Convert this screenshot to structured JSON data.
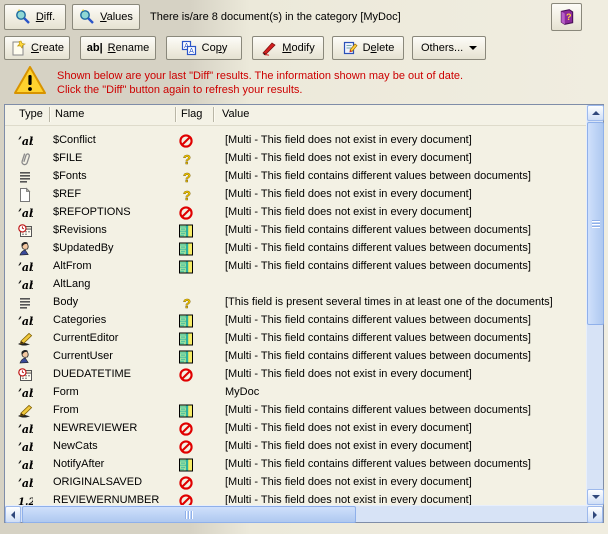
{
  "toolbar": {
    "diff": {
      "pre": "",
      "u": "D",
      "post": "iff."
    },
    "values": {
      "pre": "",
      "u": "V",
      "post": "alues"
    },
    "status": "There is/are 8 document(s) in the category [MyDoc]",
    "create": {
      "pre": "",
      "u": "C",
      "post": "reate"
    },
    "rename": {
      "pre": "",
      "u": "R",
      "post": "ename"
    },
    "copy": {
      "pre": "Co",
      "u": "p",
      "post": "y"
    },
    "modify": {
      "pre": "",
      "u": "M",
      "post": "odify"
    },
    "delete": {
      "pre": "D",
      "u": "e",
      "post": "lete"
    },
    "others": "Others..."
  },
  "warning": {
    "line1": "Shown below are your last \"Diff\" results. The information shown may be out of date.",
    "line2": "Click the \"Diff\" button again to refresh your results."
  },
  "glyphs": {
    "text_field": "ʼab",
    "number_field": "1.2",
    "rename": "ab|",
    "copy_letter": "A",
    "question": "?",
    "exclamation": "!",
    "help_mark": "?"
  },
  "colors": {
    "warning_text": "#cc0000",
    "flag_missing": "#e00000",
    "flag_question": "#ffd400",
    "flag_diff_green": "#9fe4a0",
    "flag_diff_teal": "#2ab0a0",
    "flag_diff_yellow": "#f6ec66",
    "scrollbar_thumb": "#aec8f0"
  },
  "table": {
    "headers": [
      "Type",
      "Name",
      "Flag",
      "Value"
    ],
    "rows": [
      {
        "icon": "text-field",
        "name": "$Conflict",
        "flag": "missing",
        "value": "[Multi - This field does not exist in every document]"
      },
      {
        "icon": "attachment",
        "name": "$FILE",
        "flag": "question",
        "value": "[Multi - This field does not exist in every document]"
      },
      {
        "icon": "text-list",
        "name": "$Fonts",
        "flag": "question",
        "value": "[Multi - This field contains different values between documents]"
      },
      {
        "icon": "document",
        "name": "$REF",
        "flag": "question",
        "value": "[Multi - This field does not exist in every document]"
      },
      {
        "icon": "text-field",
        "name": "$REFOPTIONS",
        "flag": "missing",
        "value": "[Multi - This field does not exist in every document]"
      },
      {
        "icon": "datetime",
        "name": "$Revisions",
        "flag": "different",
        "value": "[Multi - This field contains different values between documents]"
      },
      {
        "icon": "person",
        "name": "$UpdatedBy",
        "flag": "different",
        "value": "[Multi - This field contains different values between documents]"
      },
      {
        "icon": "text-field",
        "name": "AltFrom",
        "flag": "different",
        "value": "[Multi - This field contains different values between documents]"
      },
      {
        "icon": "text-field",
        "name": "AltLang",
        "flag": "none",
        "value": ""
      },
      {
        "icon": "text-list",
        "name": "Body",
        "flag": "question",
        "value": "[This field is present several times in at least one of the documents]"
      },
      {
        "icon": "text-field",
        "name": "Categories",
        "flag": "different",
        "value": "[Multi - This field contains different values between documents]"
      },
      {
        "icon": "author",
        "name": "CurrentEditor",
        "flag": "different",
        "value": "[Multi - This field contains different values between documents]"
      },
      {
        "icon": "person",
        "name": "CurrentUser",
        "flag": "different",
        "value": "[Multi - This field contains different values between documents]"
      },
      {
        "icon": "datetime",
        "name": "DUEDATETIME",
        "flag": "missing",
        "value": "[Multi - This field does not exist in every document]"
      },
      {
        "icon": "text-field",
        "name": "Form",
        "flag": "none",
        "value": "MyDoc"
      },
      {
        "icon": "author",
        "name": "From",
        "flag": "different",
        "value": "[Multi - This field contains different values between documents]"
      },
      {
        "icon": "text-field",
        "name": "NEWREVIEWER",
        "flag": "missing",
        "value": "[Multi - This field does not exist in every document]"
      },
      {
        "icon": "text-field",
        "name": "NewCats",
        "flag": "missing",
        "value": "[Multi - This field does not exist in every document]"
      },
      {
        "icon": "text-field",
        "name": "NotifyAfter",
        "flag": "different",
        "value": "[Multi - This field contains different values between documents]"
      },
      {
        "icon": "text-field",
        "name": "ORIGINALSAVED",
        "flag": "missing",
        "value": "[Multi - This field does not exist in every document]"
      },
      {
        "icon": "number-field",
        "name": "REVIEWERNUMBER",
        "flag": "missing",
        "value": "[Multi - This field does not exist in every document]"
      }
    ]
  }
}
